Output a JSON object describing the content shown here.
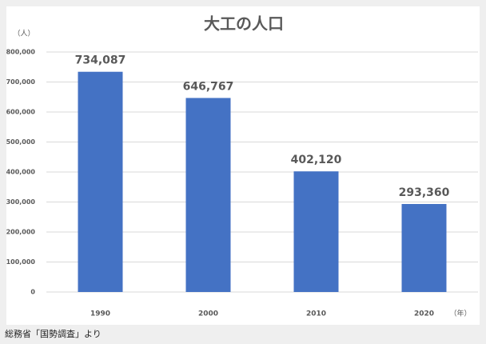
{
  "chart_data": {
    "type": "bar",
    "title": "大工の人口",
    "ylabel": "（人）",
    "xlabel": "（年）",
    "categories": [
      "1990",
      "2000",
      "2010",
      "2020"
    ],
    "values": [
      734087,
      646767,
      402120,
      293360
    ],
    "value_labels": [
      "734,087",
      "646,767",
      "402,120",
      "293,360"
    ],
    "color": "#4472c4",
    "ylim": [
      0,
      800000
    ],
    "yticks": [
      0,
      {
        "value": 100000,
        "label": "100,000"
      },
      {
        "value": 200000,
        "label": "200,000"
      },
      {
        "value": 300000,
        "label": "300,000"
      },
      {
        "value": 400000,
        "label": "400,000"
      },
      {
        "value": 500000,
        "label": "500,000"
      },
      {
        "value": 600000,
        "label": "600,000"
      },
      {
        "value": 700000,
        "label": "700,000"
      },
      {
        "value": 800000,
        "label": "800,000"
      }
    ],
    "grid": true
  },
  "source": "総務省「国勢調査」より"
}
